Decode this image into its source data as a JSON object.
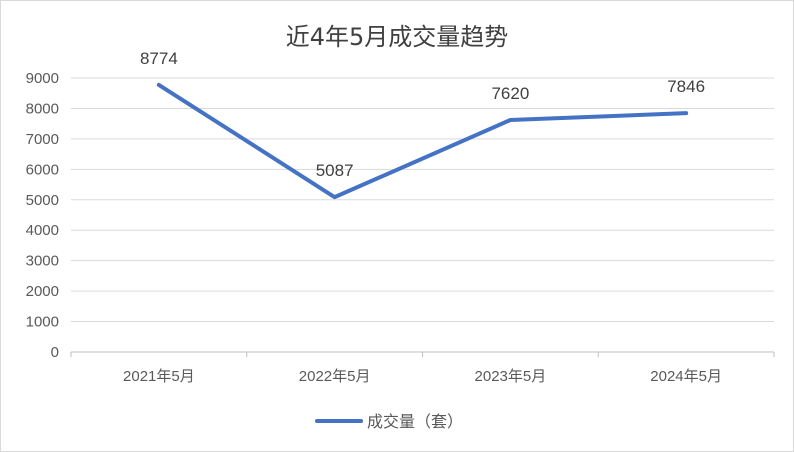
{
  "chart_data": {
    "type": "line",
    "title": "近4年5月成交量趋势",
    "categories": [
      "2021年5月",
      "2022年5月",
      "2023年5月",
      "2024年5月"
    ],
    "series": [
      {
        "name": "成交量（套）",
        "values": [
          8774,
          5087,
          7620,
          7846
        ]
      }
    ],
    "ylim": [
      0,
      9000
    ],
    "yticks": [
      0,
      1000,
      2000,
      3000,
      4000,
      5000,
      6000,
      7000,
      8000,
      9000
    ],
    "grid": true,
    "legend": "bottom",
    "data_labels": true,
    "colors": {
      "series": "#4472c4",
      "grid": "#d9d9d9",
      "axis": "#bfbfbf",
      "text": "#595959",
      "title": "#404040"
    }
  }
}
